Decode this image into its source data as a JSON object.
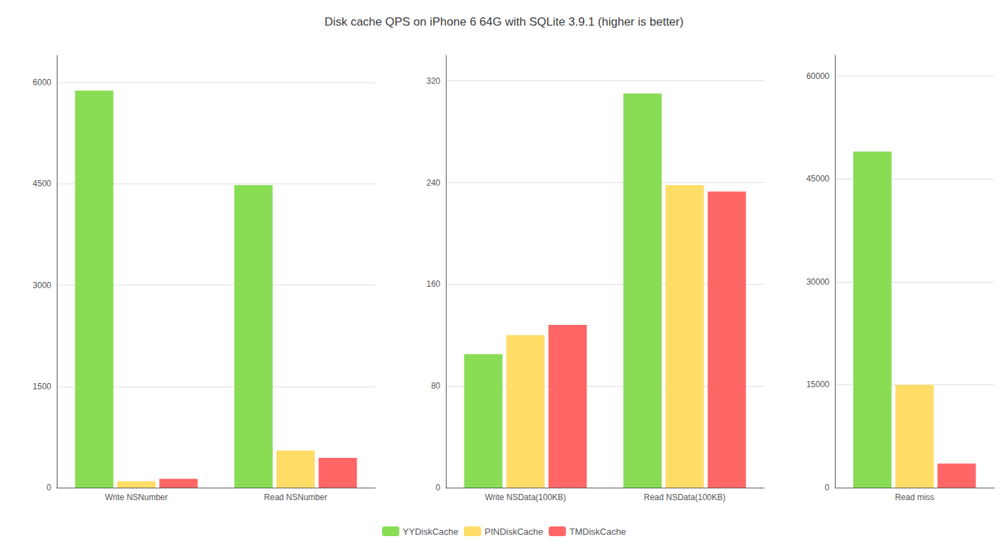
{
  "title": "Disk cache QPS on iPhone 6 64G with SQLite 3.9.1 (higher is better)",
  "legend": "bottom",
  "chart_data": [
    {
      "type": "bar",
      "categories": [
        "Write NSNumber",
        "Read NSNumber"
      ],
      "series": [
        {
          "name": "YYDiskCache",
          "color": "#88dd55",
          "values": [
            5880,
            4480
          ]
        },
        {
          "name": "PINDiskCache",
          "color": "#ffdd66",
          "values": [
            95,
            550
          ]
        },
        {
          "name": "TMDiskCache",
          "color": "#ff6666",
          "values": [
            130,
            440
          ]
        }
      ],
      "ylim": [
        0,
        6400
      ],
      "yticks": [
        0,
        1500,
        3000,
        4500,
        6000
      ],
      "grid": true
    },
    {
      "type": "bar",
      "categories": [
        "Write NSData(100KB)",
        "Read NSData(100KB)"
      ],
      "series": [
        {
          "name": "YYDiskCache",
          "color": "#88dd55",
          "values": [
            105,
            310
          ]
        },
        {
          "name": "PINDiskCache",
          "color": "#ffdd66",
          "values": [
            120,
            238
          ]
        },
        {
          "name": "TMDiskCache",
          "color": "#ff6666",
          "values": [
            128,
            233
          ]
        }
      ],
      "ylim": [
        0,
        340
      ],
      "yticks": [
        0,
        80,
        160,
        240,
        320
      ],
      "grid": true
    },
    {
      "type": "bar",
      "categories": [
        "Read miss"
      ],
      "series": [
        {
          "name": "YYDiskCache",
          "color": "#88dd55",
          "values": [
            49000
          ]
        },
        {
          "name": "PINDiskCache",
          "color": "#ffdd66",
          "values": [
            15000
          ]
        },
        {
          "name": "TMDiskCache",
          "color": "#ff6666",
          "values": [
            3500
          ]
        }
      ],
      "ylim": [
        0,
        63000
      ],
      "yticks": [
        0,
        15000,
        30000,
        45000,
        60000
      ],
      "grid": true
    }
  ]
}
